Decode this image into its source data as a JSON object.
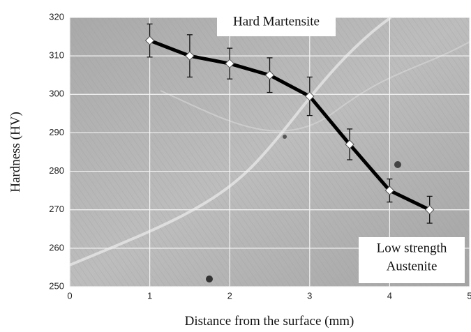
{
  "chart_data": {
    "type": "line",
    "x_label": "Distance from the surface (mm)",
    "y_label": "Hardness (HV)",
    "x": [
      1,
      1.5,
      2,
      2.5,
      3,
      3.5,
      4,
      4.5
    ],
    "series": [
      {
        "name": "Hardness",
        "color": "#000000",
        "values": [
          314,
          310,
          308,
          305,
          299.5,
          287,
          275,
          270
        ],
        "errors": [
          4.3,
          5.5,
          4,
          4.5,
          5,
          4,
          3,
          3.5
        ]
      }
    ],
    "xlim": [
      0,
      5
    ],
    "xticks": [
      0,
      1,
      2,
      3,
      4,
      5
    ],
    "ylim": [
      250,
      320
    ],
    "yticks": [
      250,
      260,
      270,
      280,
      290,
      300,
      310,
      320
    ],
    "grid": true,
    "annotations": [
      [
        "Hard Martensite"
      ],
      [
        "Low strength",
        "Austenite"
      ]
    ]
  }
}
